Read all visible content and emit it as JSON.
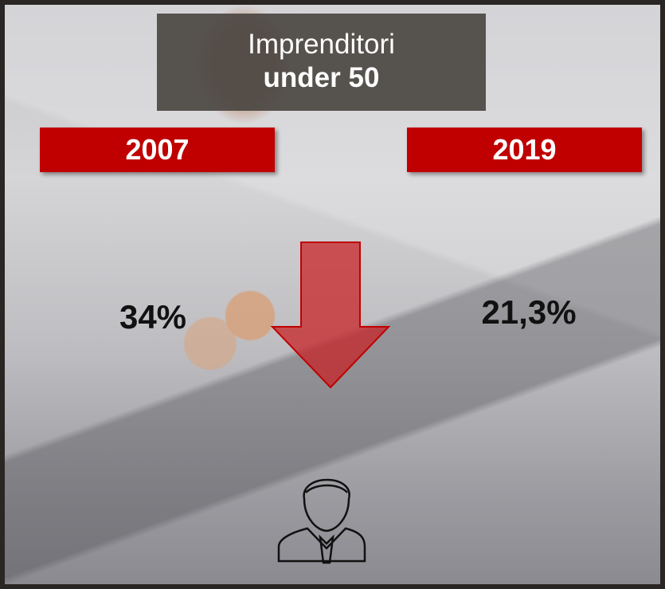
{
  "title": {
    "line1": "Imprenditori",
    "line2": "under 50"
  },
  "columns": [
    {
      "year": "2007",
      "value": "34%"
    },
    {
      "year": "2019",
      "value": "21,3%"
    }
  ]
}
